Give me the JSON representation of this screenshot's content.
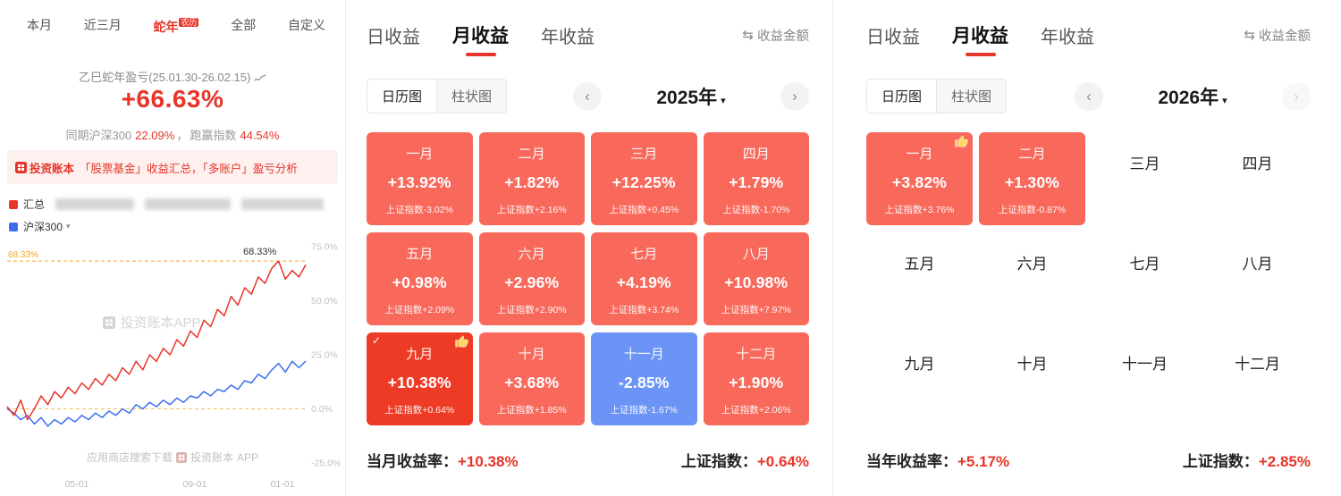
{
  "colors": {
    "accent": "#e7352a",
    "cell_red": "#f8695c",
    "cell_selected": "#ee3b26",
    "cell_blue": "#6b94f6",
    "banner_bg": "#fdf0ee",
    "line_red": "#e7352a",
    "line_blue": "#3d6ef0",
    "dash_orange": "#f5a623"
  },
  "left_panel": {
    "tabs": [
      {
        "label": "本月"
      },
      {
        "label": "近三月"
      },
      {
        "label": "蛇年",
        "badge": "农历",
        "active": true
      },
      {
        "label": "全部"
      },
      {
        "label": "自定义"
      }
    ],
    "title": "乙巳蛇年盈亏(25.01.30-26.02.15)",
    "total_return": "+66.63%",
    "benchmark": {
      "label1": "同期沪深300",
      "value1": "22.09%",
      "separator": "，",
      "label2": "跑赢指数",
      "value2": "44.54%"
    },
    "banner": {
      "brand": "投资账本",
      "slogan": "「股票基金」收益汇总，「多账户」盈亏分析"
    },
    "legend": [
      {
        "label": "汇总",
        "color": "#e7352a"
      },
      {
        "label": "沪深300",
        "color": "#3d6ef0",
        "caret": "▾"
      }
    ],
    "watermark": "投资账本APP",
    "download_hint": "应用商店搜索下载",
    "download_brand": "投资账本",
    "download_suffix": "APP"
  },
  "chart_data": {
    "type": "line",
    "ylim": [
      -25,
      75
    ],
    "yticks": [
      {
        "value": 75,
        "label": "75.0%"
      },
      {
        "value": 50,
        "label": "50.0%"
      },
      {
        "value": 25,
        "label": "25.0%"
      },
      {
        "value": 0,
        "label": "0.0%"
      },
      {
        "value": -25,
        "label": "-25.0%"
      }
    ],
    "x_labels": [
      "05-01",
      "09-01",
      "01-01"
    ],
    "series": [
      {
        "name": "汇总",
        "color": "#e7352a",
        "values": [
          1,
          -3,
          4,
          -5,
          0,
          6,
          2,
          8,
          5,
          10,
          7,
          12,
          9,
          14,
          11,
          16,
          13,
          19,
          16,
          22,
          18,
          25,
          22,
          28,
          25,
          32,
          29,
          36,
          33,
          41,
          38,
          46,
          43,
          52,
          48,
          56,
          53,
          61,
          58,
          65,
          68.3,
          60,
          64,
          61,
          66.6
        ]
      },
      {
        "name": "沪深300",
        "color": "#3d6ef0",
        "values": [
          0,
          -2,
          -5,
          -3,
          -7,
          -4,
          -8,
          -5,
          -7,
          -4,
          -6,
          -3,
          -5,
          -2,
          -4,
          -1,
          -3,
          0,
          -2,
          2,
          0,
          3,
          1,
          4,
          2,
          5,
          3,
          6,
          5,
          8,
          6,
          9,
          8,
          11,
          9,
          13,
          12,
          16,
          14,
          18,
          21,
          17,
          22,
          19,
          22.1
        ]
      }
    ],
    "reference_lines": [
      {
        "value": 68.33,
        "label": "68.33%",
        "color": "#f5a623"
      },
      {
        "value": 0,
        "label": "",
        "color": "#f0c35e"
      }
    ],
    "peak_annotation": {
      "value": 68.33,
      "label": "68.33%"
    },
    "legend_position": "top-left",
    "grid": false
  },
  "panels": [
    {
      "tabs": [
        {
          "label": "日收益"
        },
        {
          "label": "月收益",
          "active": true
        },
        {
          "label": "年收益"
        }
      ],
      "amount_toggle": "收益金额",
      "views": [
        {
          "label": "日历图",
          "active": true
        },
        {
          "label": "柱状图"
        }
      ],
      "year": "2025年",
      "prev_enabled": true,
      "next_enabled": true,
      "months": [
        {
          "name": "一月",
          "value": "+13.92%",
          "index": "上证指数-3.02%",
          "type": "red"
        },
        {
          "name": "二月",
          "value": "+1.82%",
          "index": "上证指数+2.16%",
          "type": "red"
        },
        {
          "name": "三月",
          "value": "+12.25%",
          "index": "上证指数+0.45%",
          "type": "red"
        },
        {
          "name": "四月",
          "value": "+1.79%",
          "index": "上证指数-1.70%",
          "type": "red"
        },
        {
          "name": "五月",
          "value": "+0.98%",
          "index": "上证指数+2.09%",
          "type": "red"
        },
        {
          "name": "六月",
          "value": "+2.96%",
          "index": "上证指数+2.90%",
          "type": "red"
        },
        {
          "name": "七月",
          "value": "+4.19%",
          "index": "上证指数+3.74%",
          "type": "red"
        },
        {
          "name": "八月",
          "value": "+10.98%",
          "index": "上证指数+7.97%",
          "type": "red"
        },
        {
          "name": "九月",
          "value": "+10.38%",
          "index": "上证指数+0.64%",
          "type": "red",
          "selected": true,
          "thumb": true
        },
        {
          "name": "十月",
          "value": "+3.68%",
          "index": "上证指数+1.85%",
          "type": "red"
        },
        {
          "name": "十一月",
          "value": "-2.85%",
          "index": "上证指数-1.67%",
          "type": "blue"
        },
        {
          "name": "十二月",
          "value": "+1.90%",
          "index": "上证指数+2.06%",
          "type": "red"
        }
      ],
      "summary_left_label": "当月收益率：",
      "summary_left_value": "+10.38%",
      "summary_right_label": "上证指数：",
      "summary_right_value": "+0.64%"
    },
    {
      "tabs": [
        {
          "label": "日收益"
        },
        {
          "label": "月收益",
          "active": true
        },
        {
          "label": "年收益"
        }
      ],
      "amount_toggle": "收益金额",
      "views": [
        {
          "label": "日历图",
          "active": true
        },
        {
          "label": "柱状图"
        }
      ],
      "year": "2026年",
      "prev_enabled": true,
      "next_enabled": false,
      "months": [
        {
          "name": "一月",
          "value": "+3.82%",
          "index": "上证指数+3.76%",
          "type": "red",
          "thumb": true
        },
        {
          "name": "二月",
          "value": "+1.30%",
          "index": "上证指数-0.87%",
          "type": "red"
        },
        {
          "name": "三月",
          "type": "empty"
        },
        {
          "name": "四月",
          "type": "empty"
        },
        {
          "name": "五月",
          "type": "empty"
        },
        {
          "name": "六月",
          "type": "empty"
        },
        {
          "name": "七月",
          "type": "empty"
        },
        {
          "name": "八月",
          "type": "empty"
        },
        {
          "name": "九月",
          "type": "empty"
        },
        {
          "name": "十月",
          "type": "empty"
        },
        {
          "name": "十一月",
          "type": "empty"
        },
        {
          "name": "十二月",
          "type": "empty"
        }
      ],
      "summary_left_label": "当年收益率：",
      "summary_left_value": "+5.17%",
      "summary_right_label": "上证指数：",
      "summary_right_value": "+2.85%"
    }
  ]
}
